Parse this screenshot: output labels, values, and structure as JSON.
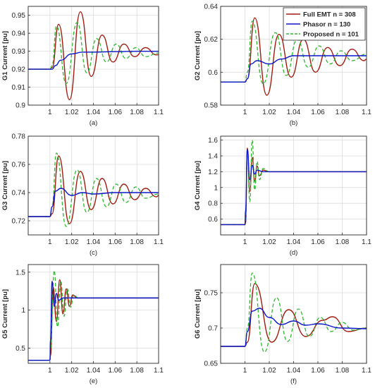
{
  "colors": {
    "full_emt": "#a01c10",
    "phasor": "#0a18c8",
    "proposed": "#2fb82f"
  },
  "legend": {
    "location": "top-right of panel (b)",
    "entries": [
      {
        "label": "Full EMT n = 308",
        "style": "solid",
        "color": "#a01c10"
      },
      {
        "label": "Phasor n = 130",
        "style": "solid",
        "color": "#0a18c8"
      },
      {
        "label": "Proposed n = 101",
        "style": "dashed",
        "color": "#2fb82f"
      }
    ]
  },
  "chart_data": [
    {
      "panel": "(a)",
      "type": "line",
      "ylabel": "G1 Current [pu]",
      "xlim": [
        0.98,
        1.1
      ],
      "ylim": [
        0.9,
        0.955
      ],
      "xticks": [
        "1",
        "1.02",
        "1.04",
        "1.06",
        "1.08",
        "1.1"
      ],
      "yticks": [
        "0.9",
        "0.91",
        "0.92",
        "0.93",
        "0.94",
        "0.95"
      ],
      "grid": true,
      "series": [
        {
          "name": "Full EMT n = 308",
          "x": [
            0.98,
            1.0,
            1.002,
            1.008,
            1.018,
            1.028,
            1.038,
            1.048,
            1.058,
            1.068,
            1.078,
            1.088,
            1.098,
            1.1
          ],
          "y": [
            0.92,
            0.92,
            0.921,
            0.945,
            0.903,
            0.952,
            0.916,
            0.939,
            0.924,
            0.934,
            0.927,
            0.932,
            0.928,
            0.928
          ]
        },
        {
          "name": "Phasor n = 130",
          "x": [
            0.98,
            1.0,
            1.002,
            1.005,
            1.01,
            1.02,
            1.03,
            1.04,
            1.06,
            1.08,
            1.1
          ],
          "y": [
            0.92,
            0.92,
            0.92,
            0.922,
            0.925,
            0.9285,
            0.9295,
            0.9295,
            0.9298,
            0.93,
            0.93
          ]
        },
        {
          "name": "Proposed n = 101",
          "x": [
            0.98,
            1.0,
            1.002,
            1.006,
            1.015,
            1.025,
            1.034,
            1.043,
            1.052,
            1.061,
            1.07,
            1.079,
            1.088,
            1.1
          ],
          "y": [
            0.92,
            0.92,
            0.922,
            0.944,
            0.912,
            0.946,
            0.918,
            0.937,
            0.924,
            0.934,
            0.926,
            0.932,
            0.927,
            0.929
          ]
        }
      ]
    },
    {
      "panel": "(b)",
      "type": "line",
      "ylabel": "G2 Current [pu]",
      "xlim": [
        0.98,
        1.1
      ],
      "ylim": [
        0.58,
        0.64
      ],
      "xticks": [
        "1",
        "1.02",
        "1.04",
        "1.06",
        "1.08",
        "1.1"
      ],
      "yticks": [
        "0.58",
        "0.6",
        "0.62",
        "0.64"
      ],
      "grid": true,
      "series": [
        {
          "name": "Full EMT n = 308",
          "x": [
            0.98,
            1.0,
            1.002,
            1.008,
            1.018,
            1.028,
            1.038,
            1.048,
            1.058,
            1.068,
            1.078,
            1.088,
            1.098,
            1.1
          ],
          "y": [
            0.594,
            0.594,
            0.596,
            0.633,
            0.586,
            0.623,
            0.597,
            0.62,
            0.6,
            0.615,
            0.604,
            0.614,
            0.607,
            0.608
          ]
        },
        {
          "name": "Phasor n = 130",
          "x": [
            0.98,
            1.0,
            1.002,
            1.005,
            1.01,
            1.02,
            1.03,
            1.04,
            1.06,
            1.08,
            1.1
          ],
          "y": [
            0.594,
            0.594,
            0.596,
            0.605,
            0.607,
            0.605,
            0.608,
            0.61,
            0.61,
            0.61,
            0.61
          ]
        },
        {
          "name": "Proposed n = 101",
          "x": [
            0.98,
            1.0,
            1.002,
            1.006,
            1.015,
            1.025,
            1.034,
            1.043,
            1.052,
            1.061,
            1.07,
            1.079,
            1.088,
            1.1
          ],
          "y": [
            0.594,
            0.594,
            0.6,
            0.631,
            0.593,
            0.624,
            0.598,
            0.62,
            0.603,
            0.616,
            0.605,
            0.613,
            0.607,
            0.611
          ]
        }
      ]
    },
    {
      "panel": "(c)",
      "type": "line",
      "ylabel": "G3 Current [pu]",
      "xlim": [
        0.98,
        1.1
      ],
      "ylim": [
        0.71,
        0.78
      ],
      "xticks": [
        "1",
        "1.02",
        "1.04",
        "1.06",
        "1.08",
        "1.1"
      ],
      "yticks": [
        "0.72",
        "0.74",
        "0.76",
        "0.78"
      ],
      "grid": true,
      "series": [
        {
          "name": "Full EMT n = 308",
          "x": [
            0.98,
            1.0,
            1.002,
            1.008,
            1.018,
            1.028,
            1.038,
            1.048,
            1.058,
            1.068,
            1.078,
            1.088,
            1.098,
            1.1
          ],
          "y": [
            0.723,
            0.723,
            0.725,
            0.766,
            0.718,
            0.755,
            0.728,
            0.75,
            0.732,
            0.746,
            0.735,
            0.743,
            0.737,
            0.738
          ]
        },
        {
          "name": "Phasor n = 130",
          "x": [
            0.98,
            1.0,
            1.002,
            1.005,
            1.01,
            1.02,
            1.03,
            1.04,
            1.06,
            1.08,
            1.1
          ],
          "y": [
            0.723,
            0.723,
            0.73,
            0.741,
            0.743,
            0.738,
            0.74,
            0.739,
            0.74,
            0.74,
            0.74
          ]
        },
        {
          "name": "Proposed n = 101",
          "x": [
            0.98,
            1.0,
            1.002,
            1.006,
            1.015,
            1.025,
            1.034,
            1.043,
            1.052,
            1.061,
            1.07,
            1.079,
            1.088,
            1.1
          ],
          "y": [
            0.723,
            0.723,
            0.73,
            0.768,
            0.716,
            0.756,
            0.726,
            0.75,
            0.73,
            0.746,
            0.733,
            0.744,
            0.736,
            0.739
          ]
        }
      ]
    },
    {
      "panel": "(d)",
      "type": "line",
      "ylabel": "G4 Current [pu]",
      "xlim": [
        0.98,
        1.1
      ],
      "ylim": [
        0.4,
        1.65
      ],
      "xticks": [
        "1",
        "1.02",
        "1.04",
        "1.06",
        "1.08",
        "1.1"
      ],
      "yticks": [
        "0.6",
        "0.8",
        "1",
        "1.2",
        "1.4",
        "1.6"
      ],
      "grid": true,
      "series": [
        {
          "name": "Full EMT n = 308",
          "x": [
            0.98,
            1.0,
            1.0005,
            1.002,
            1.004,
            1.006,
            1.008,
            1.01,
            1.012,
            1.015,
            1.02,
            1.1
          ],
          "y": [
            0.53,
            0.53,
            0.55,
            1.5,
            0.95,
            1.38,
            1.08,
            1.27,
            1.15,
            1.22,
            1.2,
            1.2
          ]
        },
        {
          "name": "Phasor n = 130",
          "x": [
            0.98,
            1.0,
            1.0005,
            1.002,
            1.004,
            1.006,
            1.008,
            1.01,
            1.015,
            1.1
          ],
          "y": [
            0.53,
            0.53,
            0.7,
            1.48,
            1.1,
            1.28,
            1.17,
            1.22,
            1.2,
            1.2
          ]
        },
        {
          "name": "Proposed n = 101",
          "x": [
            0.98,
            1.0,
            1.0005,
            1.002,
            1.004,
            1.006,
            1.008,
            1.01,
            1.012,
            1.015,
            1.02,
            1.1
          ],
          "y": [
            0.53,
            0.53,
            0.6,
            1.45,
            0.82,
            1.6,
            0.97,
            1.33,
            1.1,
            1.24,
            1.2,
            1.2
          ]
        }
      ]
    },
    {
      "panel": "(e)",
      "type": "line",
      "ylabel": "G5 Current [pu]",
      "xlim": [
        0.98,
        1.1
      ],
      "ylim": [
        0.3,
        1.6
      ],
      "xticks": [
        "1",
        "1.02",
        "1.04",
        "1.06",
        "1.08",
        "1.1"
      ],
      "yticks": [
        "0.5",
        "1",
        "1.5"
      ],
      "grid": true,
      "series": [
        {
          "name": "Full EMT n = 308",
          "x": [
            0.98,
            1.0,
            1.0005,
            1.003,
            1.006,
            1.009,
            1.012,
            1.015,
            1.018,
            1.021,
            1.025,
            1.1
          ],
          "y": [
            0.34,
            0.34,
            0.4,
            1.3,
            0.85,
            1.4,
            0.95,
            1.28,
            1.05,
            1.2,
            1.16,
            1.16
          ]
        },
        {
          "name": "Phasor n = 130",
          "x": [
            0.98,
            1.0,
            1.0005,
            1.002,
            1.004,
            1.006,
            1.008,
            1.012,
            1.1
          ],
          "y": [
            0.34,
            0.34,
            0.6,
            1.38,
            1.05,
            1.22,
            1.13,
            1.16,
            1.16
          ]
        },
        {
          "name": "Proposed n = 101",
          "x": [
            0.98,
            1.0,
            1.0005,
            1.004,
            1.007,
            1.01,
            1.013,
            1.016,
            1.019,
            1.022,
            1.026,
            1.1
          ],
          "y": [
            0.34,
            0.34,
            0.5,
            1.52,
            0.78,
            1.38,
            0.92,
            1.28,
            1.04,
            1.2,
            1.16,
            1.16
          ]
        }
      ]
    },
    {
      "panel": "(f)",
      "type": "line",
      "ylabel": "G6 Current [pu]",
      "xlim": [
        0.98,
        1.1
      ],
      "ylim": [
        0.65,
        0.79
      ],
      "xticks": [
        "1",
        "1.02",
        "1.04",
        "1.06",
        "1.08",
        "1.1"
      ],
      "yticks": [
        "0.65",
        "0.7",
        "0.75"
      ],
      "grid": true,
      "series": [
        {
          "name": "Full EMT n = 308",
          "x": [
            0.98,
            1.0,
            1.002,
            1.008,
            1.022,
            1.036,
            1.05,
            1.064,
            1.072,
            1.085,
            1.1
          ],
          "y": [
            0.674,
            0.674,
            0.68,
            0.763,
            0.68,
            0.726,
            0.688,
            0.711,
            0.716,
            0.695,
            0.7
          ]
        },
        {
          "name": "Phasor n = 130",
          "x": [
            0.98,
            1.0,
            1.002,
            1.006,
            1.012,
            1.02,
            1.03,
            1.04,
            1.05,
            1.06,
            1.08,
            1.1
          ],
          "y": [
            0.674,
            0.674,
            0.695,
            0.724,
            0.728,
            0.715,
            0.705,
            0.71,
            0.704,
            0.706,
            0.7,
            0.699
          ]
        },
        {
          "name": "Proposed n = 101",
          "x": [
            0.98,
            1.0,
            1.002,
            1.006,
            1.016,
            1.026,
            1.035,
            1.044,
            1.053,
            1.062,
            1.071,
            1.08,
            1.089,
            1.1
          ],
          "y": [
            0.674,
            0.674,
            0.7,
            0.778,
            0.666,
            0.743,
            0.681,
            0.727,
            0.688,
            0.715,
            0.695,
            0.708,
            0.697,
            0.7
          ]
        }
      ]
    }
  ]
}
